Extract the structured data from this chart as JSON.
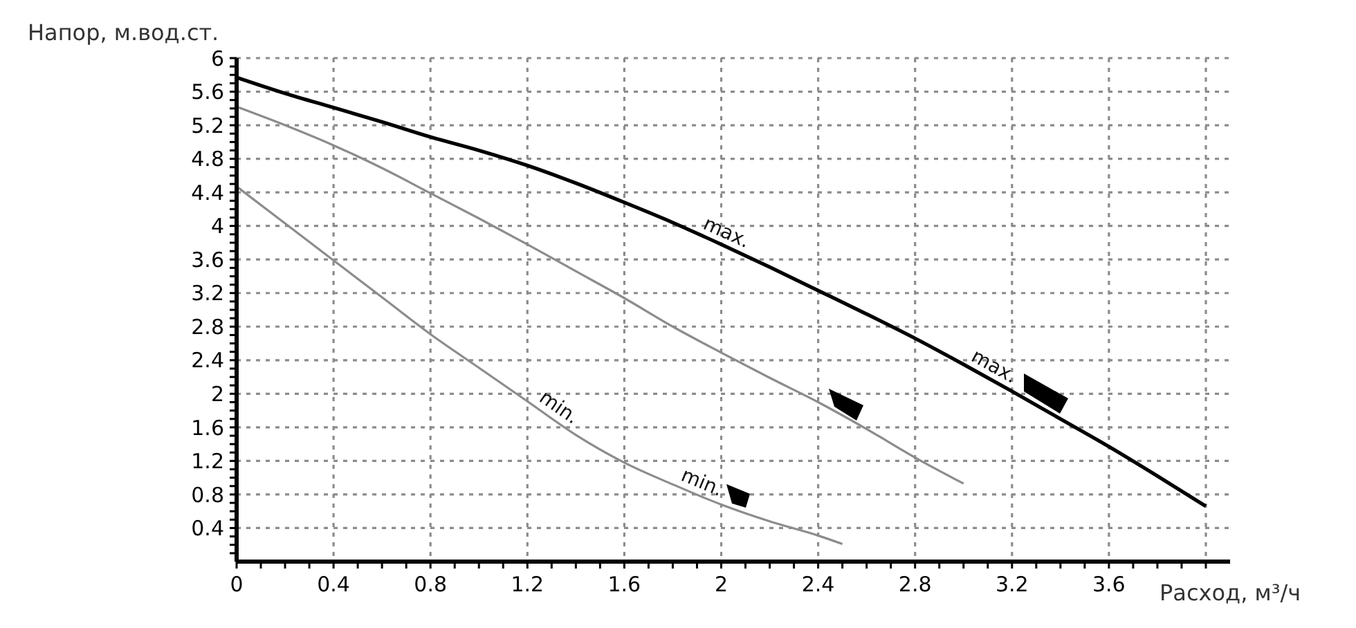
{
  "chart_data": {
    "type": "line",
    "xlabel": "Расход, м³/ч",
    "ylabel": "Напор, м.вод.ст.",
    "series": [
      {
        "color": "#000000",
        "x": [
          0,
          0.2,
          0.4,
          0.6,
          0.8,
          1,
          1.2,
          1.4,
          1.6,
          1.8,
          2,
          2.2,
          2.4,
          2.6,
          2.8,
          3,
          3.2,
          3.4,
          3.6,
          3.8,
          4
        ],
        "values": [
          5.77,
          5.58,
          5.41,
          5.24,
          5.06,
          4.9,
          4.72,
          4.51,
          4.28,
          4.04,
          3.78,
          3.51,
          3.23,
          2.95,
          2.66,
          2.35,
          2.03,
          1.7,
          1.37,
          1.02,
          0.66
        ]
      },
      {
        "color": "#8c8c8c",
        "x": [
          0,
          0.2,
          0.4,
          0.6,
          0.8,
          1,
          1.2,
          1.4,
          1.6,
          1.8,
          2,
          2.2,
          2.4,
          2.6,
          2.8,
          3
        ],
        "values": [
          5.42,
          5.2,
          4.96,
          4.69,
          4.39,
          4.09,
          3.78,
          3.46,
          3.14,
          2.8,
          2.49,
          2.19,
          1.9,
          1.58,
          1.24,
          0.93
        ]
      },
      {
        "color": "#8c8c8c",
        "x": [
          0,
          0.2,
          0.4,
          0.6,
          0.8,
          1,
          1.2,
          1.4,
          1.6,
          1.8,
          2,
          2.2,
          2.4,
          2.5
        ],
        "values": [
          4.47,
          4.03,
          3.59,
          3.15,
          2.71,
          2.31,
          1.91,
          1.51,
          1.18,
          0.92,
          0.68,
          0.48,
          0.31,
          0.21
        ]
      }
    ],
    "xlim": [
      0,
      4.1
    ],
    "ylim": [
      0,
      6
    ],
    "xticks": [
      0,
      {
        "value": 0.1,
        "label": null
      },
      {
        "value": 0.2,
        "label": null
      },
      {
        "value": 0.3,
        "label": null
      },
      0.4,
      {
        "value": 0.5,
        "label": null
      },
      {
        "value": 0.6,
        "label": null
      },
      {
        "value": 0.7,
        "label": null
      },
      0.8,
      {
        "value": 0.9,
        "label": null
      },
      {
        "value": 1,
        "label": null
      },
      {
        "value": 1.1,
        "label": null
      },
      1.2,
      {
        "value": 1.3,
        "label": null
      },
      {
        "value": 1.4,
        "label": null
      },
      {
        "value": 1.5,
        "label": null
      },
      1.6,
      {
        "value": 1.7,
        "label": null
      },
      {
        "value": 1.8,
        "label": null
      },
      {
        "value": 1.9,
        "label": null
      },
      2,
      {
        "value": 2.1,
        "label": null
      },
      {
        "value": 2.2,
        "label": null
      },
      {
        "value": 2.3,
        "label": null
      },
      2.4,
      {
        "value": 2.5,
        "label": null
      },
      {
        "value": 2.6,
        "label": null
      },
      {
        "value": 2.7,
        "label": null
      },
      2.8,
      {
        "value": 2.9,
        "label": null
      },
      {
        "value": 3,
        "label": null
      },
      {
        "value": 3.1,
        "label": null
      },
      3.2,
      {
        "value": 3.3,
        "label": null
      },
      {
        "value": 3.4,
        "label": null
      },
      {
        "value": 3.5,
        "label": null
      },
      3.6,
      {
        "value": 3.7,
        "label": null
      },
      {
        "value": 3.8,
        "label": null
      },
      {
        "value": 3.9,
        "label": null
      },
      {
        "value": 4,
        "label": null
      }
    ],
    "yticks": [
      {
        "value": 0.1,
        "label": null
      },
      {
        "value": 0.2,
        "label": null
      },
      {
        "value": 0.3,
        "label": null
      },
      0.4,
      {
        "value": 0.5,
        "label": null
      },
      {
        "value": 0.6,
        "label": null
      },
      {
        "value": 0.7,
        "label": null
      },
      0.8,
      {
        "value": 0.9,
        "label": null
      },
      {
        "value": 1,
        "label": null
      },
      {
        "value": 1.1,
        "label": null
      },
      1.2,
      {
        "value": 1.3,
        "label": null
      },
      {
        "value": 1.4,
        "label": null
      },
      {
        "value": 1.5,
        "label": null
      },
      1.6,
      {
        "value": 1.7,
        "label": null
      },
      {
        "value": 1.8,
        "label": null
      },
      {
        "value": 1.9,
        "label": null
      },
      2,
      {
        "value": 2.1,
        "label": null
      },
      {
        "value": 2.2,
        "label": null
      },
      {
        "value": 2.3,
        "label": null
      },
      2.4,
      {
        "value": 2.5,
        "label": null
      },
      {
        "value": 2.6,
        "label": null
      },
      {
        "value": 2.7,
        "label": null
      },
      2.8,
      {
        "value": 2.9,
        "label": null
      },
      {
        "value": 3,
        "label": null
      },
      {
        "value": 3.1,
        "label": null
      },
      3.2,
      {
        "value": 3.3,
        "label": null
      },
      {
        "value": 3.4,
        "label": null
      },
      {
        "value": 3.5,
        "label": null
      },
      3.6,
      {
        "value": 3.7,
        "label": null
      },
      {
        "value": 3.8,
        "label": null
      },
      {
        "value": 3.9,
        "label": null
      },
      4,
      {
        "value": 4.1,
        "label": null
      },
      {
        "value": 4.2,
        "label": null
      },
      {
        "value": 4.3,
        "label": null
      },
      4.4,
      {
        "value": 4.5,
        "label": null
      },
      {
        "value": 4.6,
        "label": null
      },
      {
        "value": 4.7,
        "label": null
      },
      4.8,
      {
        "value": 4.9,
        "label": null
      },
      {
        "value": 5,
        "label": null
      },
      {
        "value": 5.1,
        "label": null
      },
      5.2,
      {
        "value": 5.3,
        "label": null
      },
      {
        "value": 5.4,
        "label": null
      },
      {
        "value": 5.5,
        "label": null
      },
      5.6,
      {
        "value": 5.7,
        "label": null
      },
      {
        "value": 5.8,
        "label": null
      },
      {
        "value": 5.9,
        "label": null
      },
      6
    ],
    "grid": true,
    "line_style": "solid",
    "annotations": [
      {
        "text": "max.",
        "x": 2,
        "y": 3.78
      },
      {
        "text": "max.",
        "x": 3.1,
        "y": 2.19
      },
      {
        "text": "min.",
        "x": 1.3,
        "y": 1.71
      },
      {
        "text": "min.",
        "x": 1.9,
        "y": 0.8
      }
    ]
  }
}
